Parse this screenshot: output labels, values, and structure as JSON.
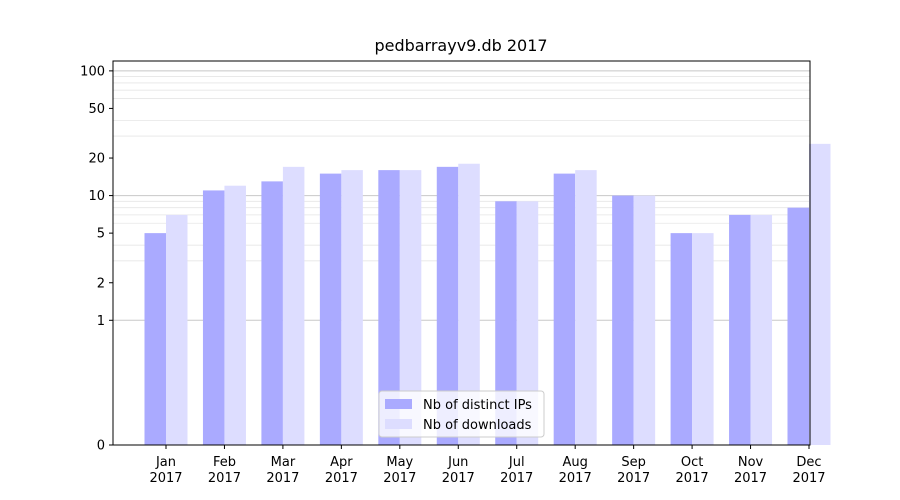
{
  "chart_data": {
    "type": "bar",
    "title": "pedbarrayv9.db 2017",
    "xlabel": "",
    "ylabel": "",
    "y_scale": "symlog",
    "ylim": [
      0,
      120
    ],
    "yticks": [
      0,
      1,
      2,
      5,
      10,
      20,
      50,
      100
    ],
    "grid": true,
    "legend_position": "lower-center",
    "categories": [
      {
        "month": "Jan",
        "year": "2017"
      },
      {
        "month": "Feb",
        "year": "2017"
      },
      {
        "month": "Mar",
        "year": "2017"
      },
      {
        "month": "Apr",
        "year": "2017"
      },
      {
        "month": "May",
        "year": "2017"
      },
      {
        "month": "Jun",
        "year": "2017"
      },
      {
        "month": "Jul",
        "year": "2017"
      },
      {
        "month": "Aug",
        "year": "2017"
      },
      {
        "month": "Sep",
        "year": "2017"
      },
      {
        "month": "Oct",
        "year": "2017"
      },
      {
        "month": "Nov",
        "year": "2017"
      },
      {
        "month": "Dec",
        "year": "2017"
      }
    ],
    "series": [
      {
        "name": "Nb of distinct IPs",
        "color": "#aaaaff",
        "values": [
          5,
          11,
          13,
          15,
          16,
          17,
          9,
          15,
          10,
          5,
          7,
          8
        ]
      },
      {
        "name": "Nb of downloads",
        "color": "#ddddff",
        "values": [
          7,
          12,
          17,
          16,
          16,
          18,
          9,
          16,
          10,
          5,
          7,
          26
        ]
      }
    ]
  }
}
